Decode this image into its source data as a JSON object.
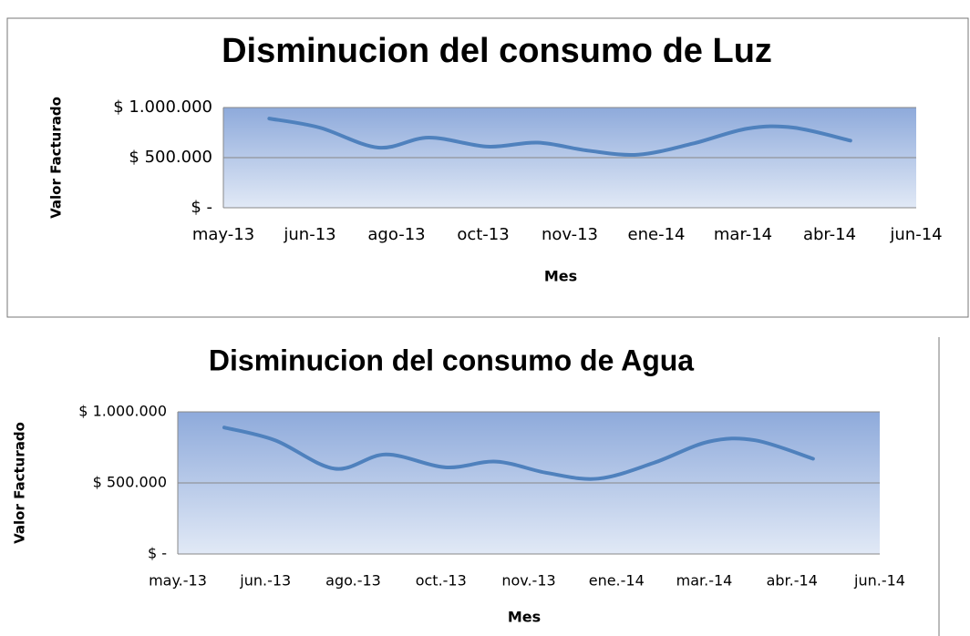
{
  "chart_data": [
    {
      "type": "line",
      "title": "Disminucion del consumo de  Luz",
      "x_label": "Mes",
      "y_label": "Valor Facturado",
      "xlim": [
        0,
        8
      ],
      "xticks": [
        {
          "value": 0,
          "label": "may-13"
        },
        {
          "value": 1,
          "label": "jun-13"
        },
        {
          "value": 2,
          "label": "ago-13"
        },
        {
          "value": 3,
          "label": "oct-13"
        },
        {
          "value": 4,
          "label": "nov-13"
        },
        {
          "value": 5,
          "label": "ene-14"
        },
        {
          "value": 6,
          "label": "mar-14"
        },
        {
          "value": 7,
          "label": "abr-14"
        },
        {
          "value": 8,
          "label": "jun-14"
        }
      ],
      "ylim": [
        0,
        1000000
      ],
      "yticks": [
        {
          "value": 0,
          "label": "$ -"
        },
        {
          "value": 500000,
          "label": "$ 500.000"
        },
        {
          "value": 1000000,
          "label": "$ 1.000.000"
        }
      ],
      "grid": true,
      "series": [
        {
          "color": "#4f81bd",
          "x": [
            0.53,
            1.11,
            1.79,
            2.37,
            3.05,
            3.63,
            4.21,
            4.79,
            5.42,
            6.05,
            6.58,
            7.24
          ],
          "values": [
            890000,
            800000,
            600000,
            700000,
            610000,
            650000,
            570000,
            530000,
            640000,
            790000,
            800000,
            670000
          ]
        }
      ]
    },
    {
      "type": "line",
      "title": "Disminucion del consumo de Agua",
      "x_label": "Mes",
      "y_label": "Valor Facturado",
      "xlim": [
        0,
        8
      ],
      "xticks": [
        {
          "value": 0,
          "label": "may.-13"
        },
        {
          "value": 1,
          "label": "jun.-13"
        },
        {
          "value": 2,
          "label": "ago.-13"
        },
        {
          "value": 3,
          "label": "oct.-13"
        },
        {
          "value": 4,
          "label": "nov.-13"
        },
        {
          "value": 5,
          "label": "ene.-14"
        },
        {
          "value": 6,
          "label": "mar.-14"
        },
        {
          "value": 7,
          "label": "abr.-14"
        },
        {
          "value": 8,
          "label": "jun.-14"
        }
      ],
      "ylim": [
        0,
        1000000
      ],
      "yticks": [
        {
          "value": 0,
          "label": "$ -"
        },
        {
          "value": 500000,
          "label": "$ 500.000"
        },
        {
          "value": 1000000,
          "label": "$ 1.000.000"
        }
      ],
      "grid": true,
      "series": [
        {
          "color": "#4f81bd",
          "x": [
            0.53,
            1.11,
            1.79,
            2.37,
            3.05,
            3.63,
            4.21,
            4.79,
            5.42,
            6.05,
            6.58,
            7.24
          ],
          "values": [
            890000,
            800000,
            600000,
            700000,
            610000,
            650000,
            570000,
            530000,
            640000,
            790000,
            800000,
            670000
          ]
        }
      ]
    }
  ]
}
